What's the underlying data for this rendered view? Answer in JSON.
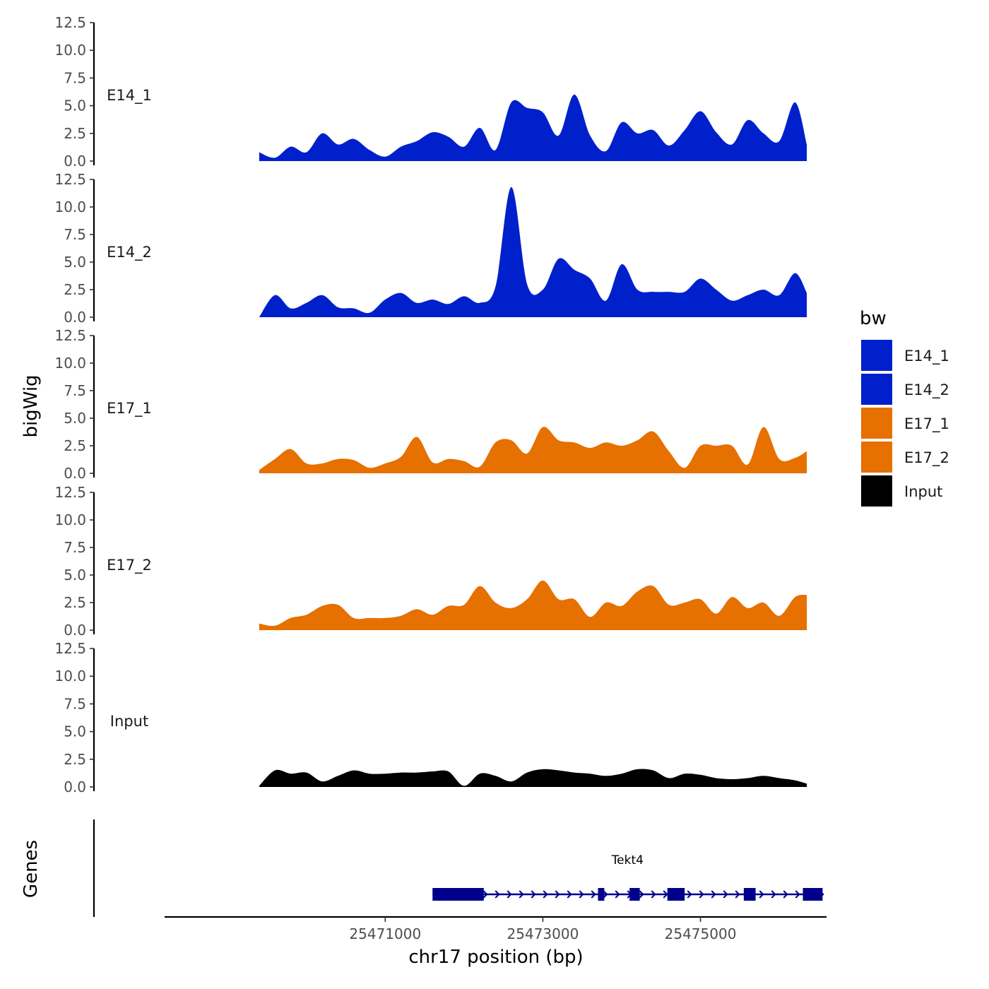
{
  "chart_data": {
    "type": "area",
    "title": "",
    "ylabel": "bigWig",
    "xlabel": "chr17 position (bp)",
    "genes_label": "Genes",
    "legend_title": "bw",
    "legend_placement": "right",
    "grid": false,
    "ylim": [
      0,
      12.5
    ],
    "yticks": [
      "0.0",
      "2.5",
      "5.0",
      "7.5",
      "10.0",
      "12.5"
    ],
    "xlim": [
      25468200,
      25476600
    ],
    "xticks": [
      25471000,
      25473000,
      25475000
    ],
    "xtick_labels": [
      "25471000",
      "25473000",
      "25475000"
    ],
    "legend": [
      {
        "name": "E14_1",
        "color": "#0020cc"
      },
      {
        "name": "E14_2",
        "color": "#0020cc"
      },
      {
        "name": "E17_1",
        "color": "#e67000"
      },
      {
        "name": "E17_2",
        "color": "#e67000"
      },
      {
        "name": "Input",
        "color": "#000000"
      }
    ],
    "x": [
      25469400,
      25469600,
      25469800,
      25470000,
      25470200,
      25470400,
      25470600,
      25470800,
      25471000,
      25471200,
      25471400,
      25471600,
      25471800,
      25472000,
      25472200,
      25472400,
      25472600,
      25472800,
      25473000,
      25473200,
      25473400,
      25473600,
      25473800,
      25474000,
      25474200,
      25474400,
      25474600,
      25474800,
      25475000,
      25475200,
      25475400,
      25475600,
      25475800,
      25476000,
      25476200,
      25476350
    ],
    "series": [
      {
        "name": "E14_1",
        "label": "E14_1",
        "color": "#0020cc",
        "values": [
          0.8,
          0.3,
          1.3,
          0.8,
          2.5,
          1.5,
          2.0,
          1.0,
          0.4,
          1.3,
          1.8,
          2.6,
          2.2,
          1.3,
          3.0,
          1.0,
          5.3,
          4.8,
          4.4,
          2.3,
          6.0,
          2.3,
          0.9,
          3.5,
          2.5,
          2.8,
          1.4,
          2.8,
          4.5,
          2.6,
          1.5,
          3.7,
          2.5,
          1.8,
          5.3,
          1.5
        ]
      },
      {
        "name": "E14_2",
        "label": "E14_2",
        "color": "#0020cc",
        "values": [
          0,
          2.0,
          0.8,
          1.3,
          2.0,
          0.9,
          0.8,
          0.4,
          1.6,
          2.2,
          1.3,
          1.6,
          1.2,
          1.9,
          1.3,
          2.8,
          11.8,
          3.0,
          2.5,
          5.3,
          4.3,
          3.5,
          1.5,
          4.8,
          2.5,
          2.3,
          2.3,
          2.3,
          3.5,
          2.5,
          1.5,
          2.0,
          2.5,
          2.0,
          4.0,
          2.2
        ]
      },
      {
        "name": "E17_1",
        "label": "E17_1",
        "color": "#e67000",
        "values": [
          0.3,
          1.3,
          2.2,
          0.9,
          0.9,
          1.3,
          1.2,
          0.5,
          0.9,
          1.5,
          3.3,
          1.0,
          1.3,
          1.1,
          0.6,
          2.8,
          3.0,
          1.8,
          4.2,
          3.0,
          2.8,
          2.3,
          2.8,
          2.5,
          3.0,
          3.8,
          2.0,
          0.5,
          2.5,
          2.5,
          2.5,
          0.8,
          4.2,
          1.3,
          1.4,
          2.0
        ]
      },
      {
        "name": "E17_2",
        "label": "E17_2",
        "color": "#e67000",
        "values": [
          0.6,
          0.4,
          1.1,
          1.4,
          2.2,
          2.3,
          1.1,
          1.1,
          1.1,
          1.3,
          1.9,
          1.4,
          2.2,
          2.3,
          4.0,
          2.5,
          2.0,
          2.8,
          4.5,
          2.8,
          2.8,
          1.2,
          2.5,
          2.2,
          3.5,
          4.0,
          2.3,
          2.5,
          2.8,
          1.5,
          3.0,
          2.0,
          2.5,
          1.3,
          3.0,
          3.2
        ]
      },
      {
        "name": "Input",
        "label": "Input",
        "color": "#000000",
        "values": [
          0.1,
          1.5,
          1.2,
          1.3,
          0.5,
          1.0,
          1.5,
          1.2,
          1.2,
          1.3,
          1.3,
          1.4,
          1.4,
          0.1,
          1.2,
          1.0,
          0.5,
          1.3,
          1.6,
          1.5,
          1.3,
          1.2,
          1.0,
          1.2,
          1.6,
          1.5,
          0.8,
          1.2,
          1.1,
          0.8,
          0.7,
          0.8,
          1.0,
          0.8,
          0.6,
          0.3
        ]
      }
    ],
    "genes": [
      {
        "name": "Tekt4",
        "start": 25471600,
        "end": 25476550,
        "strand": "+",
        "exons": [
          [
            25471600,
            25472250
          ],
          [
            25473700,
            25473780
          ],
          [
            25474100,
            25474230
          ],
          [
            25474580,
            25474800
          ],
          [
            25475550,
            25475700
          ],
          [
            25476300,
            25476550
          ]
        ]
      }
    ]
  }
}
